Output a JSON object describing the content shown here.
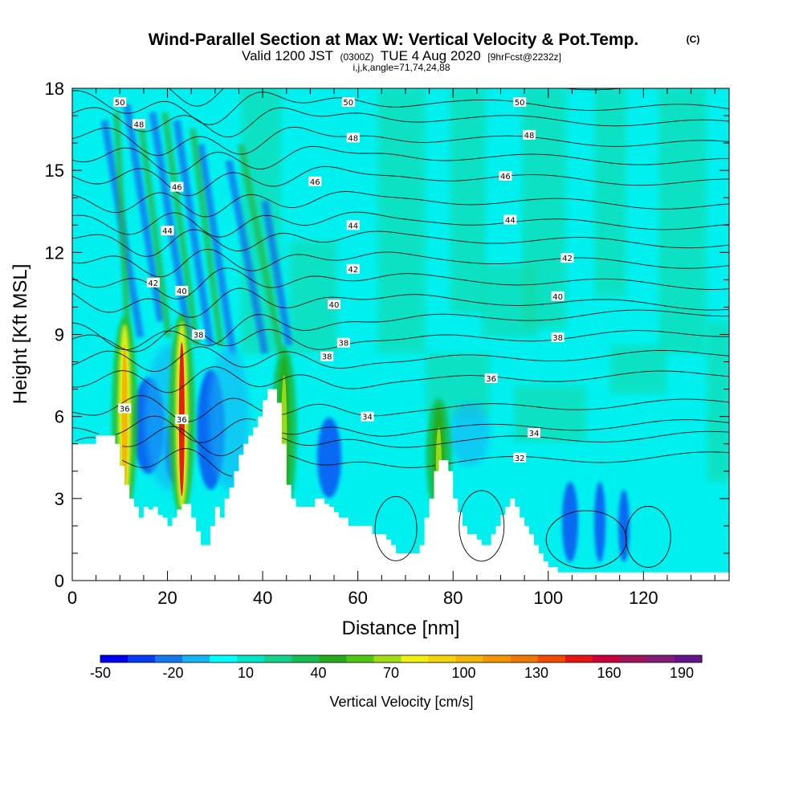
{
  "header": {
    "title_main": "Wind-Parallel Section at Max W: Vertical Velocity & Pot.Temp.",
    "title_unit": "(C)",
    "subtitle_valid": "Valid 1200 JST",
    "subtitle_utc": "(0300Z)",
    "subtitle_date": "TUE 4 Aug 2020",
    "subtitle_fcst": "[9hrFcst@2232z]",
    "subtitle_indices": "i,j,k,angle=71,74,24,88"
  },
  "chart_data": {
    "type": "heatmap",
    "title": "Wind-Parallel Section at Max W: Vertical Velocity & Pot.Temp.",
    "xlabel": "Distance [nm]",
    "ylabel": "Height [Kft MSL]",
    "xlim": [
      0,
      138
    ],
    "ylim": [
      0,
      18
    ],
    "x_ticks": [
      0,
      20,
      40,
      60,
      80,
      100,
      120
    ],
    "y_ticks": [
      0,
      3,
      6,
      9,
      12,
      15,
      18
    ],
    "x_tick_labels": [
      "0",
      "20",
      "40",
      "60",
      "80",
      "100",
      "120"
    ],
    "y_tick_labels": [
      "0",
      "3",
      "6",
      "9",
      "12",
      "15",
      "18"
    ],
    "colorbar": {
      "label": "Vertical Velocity [cm/s]",
      "tick_labels": [
        "-50",
        "-20",
        "10",
        "40",
        "70",
        "100",
        "130",
        "160",
        "190"
      ],
      "colors": [
        "#0000f0",
        "#0a3cf5",
        "#1478f0",
        "#14b4f5",
        "#00ffff",
        "#00e6c8",
        "#14d28c",
        "#14be50",
        "#28aa1e",
        "#50c814",
        "#a0dc14",
        "#f0f014",
        "#f5d20a",
        "#f5b400",
        "#f59600",
        "#f07800",
        "#f04b00",
        "#e61414",
        "#c8003c",
        "#a0145a",
        "#821e78",
        "#64148c"
      ]
    },
    "updraft_columns": [
      {
        "x": 11,
        "top_kft": 9.5,
        "peak_cm_s": 80
      },
      {
        "x": 23,
        "top_kft": 9.6,
        "peak_cm_s": 160
      },
      {
        "x": 44.5,
        "top_kft": 8.4,
        "peak_cm_s": 60
      },
      {
        "x": 77,
        "top_kft": 6.5,
        "peak_cm_s": 45
      }
    ],
    "terrain": {
      "x": [
        0,
        4,
        5,
        8,
        9,
        10,
        11,
        12,
        13,
        14,
        15,
        16,
        17,
        18,
        19,
        20,
        21,
        22,
        23,
        24,
        25,
        26,
        27,
        28,
        29,
        30,
        31,
        32,
        33,
        34,
        35,
        36,
        37,
        38,
        39,
        40,
        41,
        42,
        43,
        44,
        45,
        46,
        47,
        48,
        49,
        50,
        51,
        52,
        53,
        54,
        55,
        56,
        57,
        58,
        59,
        60,
        61,
        62,
        63,
        64,
        65,
        66,
        67,
        68,
        69,
        70,
        71,
        72,
        73,
        74,
        75,
        76,
        77,
        78,
        79,
        80,
        81,
        82,
        83,
        84,
        85,
        86,
        87,
        88,
        89,
        90,
        91,
        92,
        93,
        94,
        95,
        96,
        97,
        98,
        99,
        100,
        101,
        102,
        103,
        104,
        105,
        106,
        107,
        108,
        109,
        110,
        111,
        112,
        113,
        114,
        115,
        116,
        117,
        118,
        119,
        120,
        121,
        122,
        123,
        124,
        125,
        126,
        127,
        128,
        129,
        130,
        131,
        132,
        133,
        134,
        135,
        136,
        137,
        138
      ],
      "height_kft": [
        5.0,
        5.0,
        5.3,
        5.3,
        5.0,
        4.2,
        3.5,
        3.0,
        2.7,
        2.3,
        2.7,
        2.6,
        2.7,
        2.4,
        2.3,
        2.0,
        2.3,
        2.6,
        2.8,
        2.8,
        2.3,
        1.8,
        1.3,
        1.3,
        2.0,
        2.7,
        2.3,
        3.0,
        3.4,
        4.0,
        4.6,
        5.0,
        5.3,
        5.6,
        6.0,
        6.6,
        7.0,
        7.0,
        6.5,
        5.0,
        3.5,
        3.0,
        2.7,
        2.7,
        2.7,
        2.7,
        3.0,
        3.0,
        2.8,
        2.7,
        2.5,
        2.3,
        2.3,
        2.0,
        2.0,
        2.0,
        2.0,
        2.0,
        1.7,
        1.7,
        1.7,
        1.5,
        1.3,
        1.0,
        1.0,
        1.0,
        1.0,
        1.0,
        1.3,
        2.3,
        3.0,
        4.0,
        4.4,
        4.4,
        4.0,
        3.0,
        2.5,
        2.0,
        1.7,
        1.7,
        1.5,
        1.3,
        1.3,
        1.7,
        2.0,
        2.4,
        2.7,
        3.0,
        2.7,
        2.3,
        2.0,
        1.7,
        1.3,
        1.0,
        0.7,
        0.5,
        0.5,
        0.3,
        0.3,
        0.3,
        0.3,
        0.3,
        0.3,
        0.3,
        0.3,
        0.3,
        0.3,
        0.3,
        0.3,
        0.3,
        0.3,
        0.3,
        0.3,
        0.3,
        0.3,
        0.3,
        0.3,
        0.3,
        0.3,
        0.3,
        0.3,
        0.3,
        0.3,
        0.3,
        0.3,
        0.3,
        0.3,
        0.3,
        0.3,
        0.3,
        0.3,
        0.3,
        0.3,
        0.3
      ]
    },
    "theta_isolines": [
      {
        "value": 32,
        "base_kft": 4.3
      },
      {
        "value": 34,
        "base_kft": 5.5
      },
      {
        "value": 36,
        "base_kft": 7.3
      },
      {
        "value": 38,
        "base_kft": 8.8
      },
      {
        "value": 40,
        "base_kft": 10.3
      },
      {
        "value": 42,
        "base_kft": 11.8
      },
      {
        "value": 44,
        "base_kft": 13.2
      },
      {
        "value": 46,
        "base_kft": 14.8
      },
      {
        "value": 48,
        "base_kft": 16.2
      },
      {
        "value": 50,
        "base_kft": 17.5
      }
    ],
    "theta_labels": [
      {
        "text": "50",
        "x": 10,
        "y": 17.5
      },
      {
        "text": "50",
        "x": 58,
        "y": 17.5
      },
      {
        "text": "50",
        "x": 94,
        "y": 17.5
      },
      {
        "text": "48",
        "x": 14,
        "y": 16.7
      },
      {
        "text": "48",
        "x": 59,
        "y": 16.2
      },
      {
        "text": "48",
        "x": 96,
        "y": 16.3
      },
      {
        "text": "46",
        "x": 22,
        "y": 14.4
      },
      {
        "text": "46",
        "x": 51,
        "y": 14.6
      },
      {
        "text": "46",
        "x": 91,
        "y": 14.8
      },
      {
        "text": "44",
        "x": 20,
        "y": 12.8
      },
      {
        "text": "44",
        "x": 59,
        "y": 13.0
      },
      {
        "text": "44",
        "x": 92,
        "y": 13.2
      },
      {
        "text": "42",
        "x": 17,
        "y": 10.9
      },
      {
        "text": "42",
        "x": 59,
        "y": 11.4
      },
      {
        "text": "42",
        "x": 104,
        "y": 11.8
      },
      {
        "text": "40",
        "x": 23,
        "y": 10.6
      },
      {
        "text": "40",
        "x": 55,
        "y": 10.1
      },
      {
        "text": "40",
        "x": 102,
        "y": 10.4
      },
      {
        "text": "38",
        "x": 26.5,
        "y": 9.0
      },
      {
        "text": "38",
        "x": 57,
        "y": 8.7
      },
      {
        "text": "38",
        "x": 53.5,
        "y": 8.2
      },
      {
        "text": "38",
        "x": 102,
        "y": 8.9
      },
      {
        "text": "36",
        "x": 88,
        "y": 7.4
      },
      {
        "text": "36",
        "x": 11,
        "y": 6.3
      },
      {
        "text": "36",
        "x": 23,
        "y": 5.9
      },
      {
        "text": "34",
        "x": 62,
        "y": 6.0
      },
      {
        "text": "34",
        "x": 97,
        "y": 5.4
      },
      {
        "text": "32",
        "x": 94,
        "y": 4.5
      }
    ]
  }
}
